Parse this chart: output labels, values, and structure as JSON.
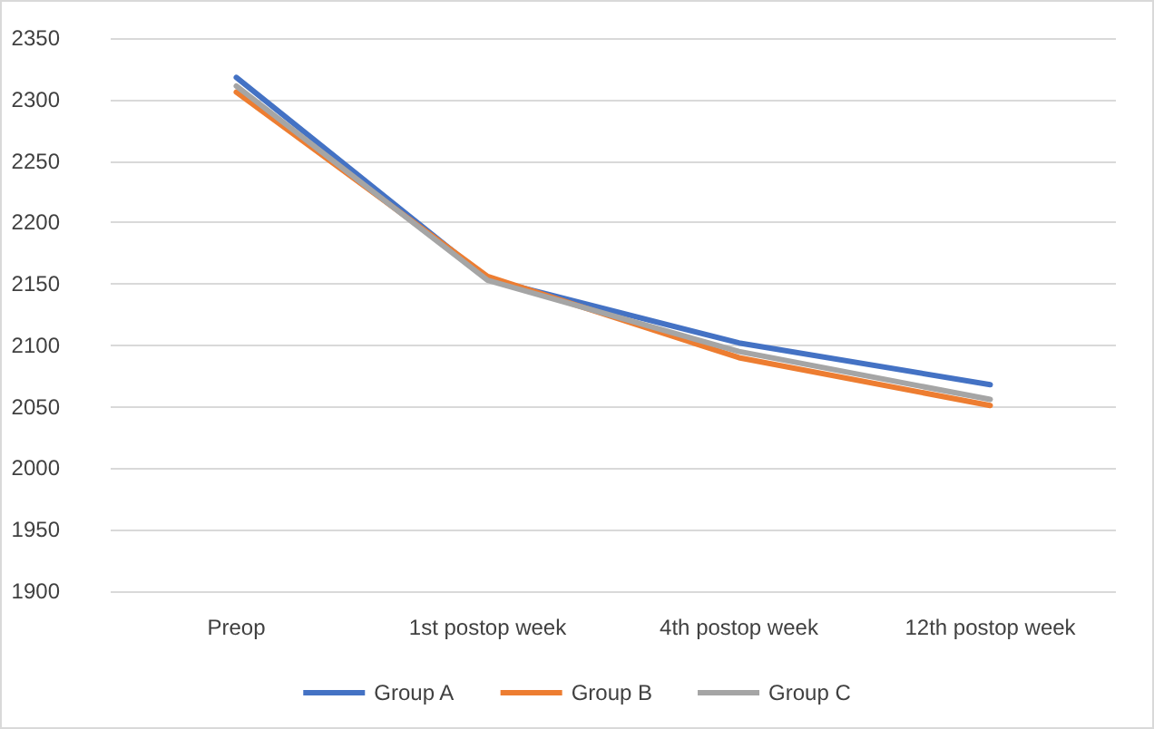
{
  "chart_data": {
    "type": "line",
    "categories": [
      "Preop",
      "1st postop week",
      "4th postop week",
      "12th postop week"
    ],
    "series": [
      {
        "name": "Group A",
        "color": "#4472c4",
        "values": [
          2318,
          2154,
          2102,
          2068
        ]
      },
      {
        "name": "Group B",
        "color": "#ed7d31",
        "values": [
          2306,
          2156,
          2090,
          2051
        ]
      },
      {
        "name": "Group C",
        "color": "#a5a5a5",
        "values": [
          2311,
          2153,
          2095,
          2056
        ]
      }
    ],
    "ylim": [
      1900,
      2350
    ],
    "yticks": [
      1900,
      1950,
      2000,
      2050,
      2100,
      2150,
      2200,
      2250,
      2300,
      2350
    ],
    "grid": "y",
    "legend": "bottom",
    "marker": "none",
    "line_style": "solid"
  }
}
